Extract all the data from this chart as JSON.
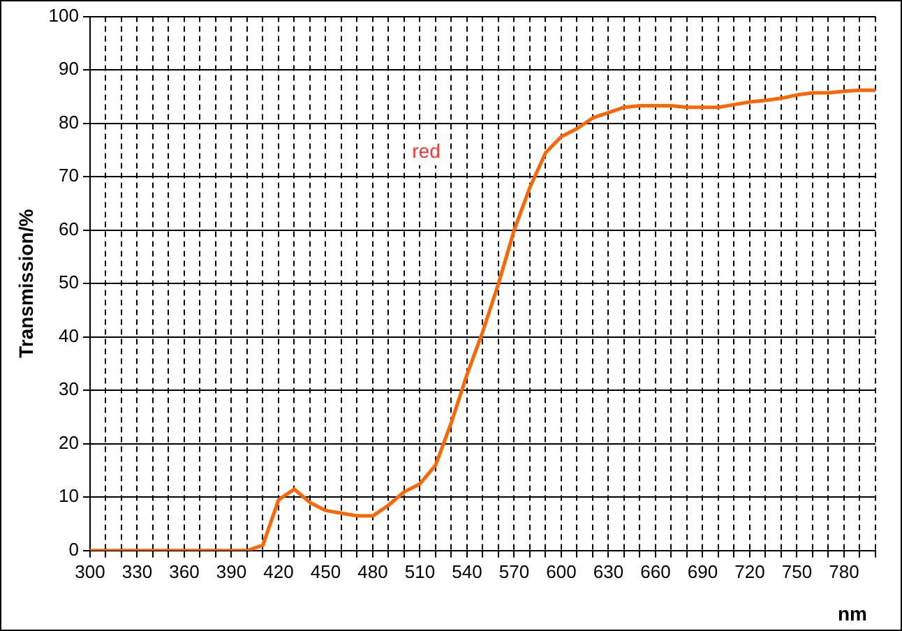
{
  "chart_data": {
    "type": "line",
    "xlabel": "nm",
    "ylabel": "Transmission/%",
    "xlim": [
      300,
      800
    ],
    "xticks": [
      300,
      {
        "value": 310,
        "label": null
      },
      {
        "value": 320,
        "label": null
      },
      330,
      {
        "value": 340,
        "label": null
      },
      {
        "value": 350,
        "label": null
      },
      360,
      {
        "value": 370,
        "label": null
      },
      {
        "value": 380,
        "label": null
      },
      390,
      {
        "value": 400,
        "label": null
      },
      {
        "value": 410,
        "label": null
      },
      420,
      {
        "value": 430,
        "label": null
      },
      {
        "value": 440,
        "label": null
      },
      450,
      {
        "value": 460,
        "label": null
      },
      {
        "value": 470,
        "label": null
      },
      480,
      {
        "value": 490,
        "label": null
      },
      {
        "value": 500,
        "label": null
      },
      510,
      {
        "value": 520,
        "label": null
      },
      {
        "value": 530,
        "label": null
      },
      540,
      {
        "value": 550,
        "label": null
      },
      {
        "value": 560,
        "label": null
      },
      570,
      {
        "value": 580,
        "label": null
      },
      {
        "value": 590,
        "label": null
      },
      600,
      {
        "value": 610,
        "label": null
      },
      {
        "value": 620,
        "label": null
      },
      630,
      {
        "value": 640,
        "label": null
      },
      {
        "value": 650,
        "label": null
      },
      660,
      {
        "value": 670,
        "label": null
      },
      {
        "value": 680,
        "label": null
      },
      690,
      {
        "value": 700,
        "label": null
      },
      {
        "value": 710,
        "label": null
      },
      720,
      {
        "value": 730,
        "label": null
      },
      {
        "value": 740,
        "label": null
      },
      750,
      {
        "value": 760,
        "label": null
      },
      {
        "value": 770,
        "label": null
      },
      780,
      {
        "value": 790,
        "label": null
      },
      {
        "value": 800,
        "label": null
      }
    ],
    "ylim": [
      0,
      100
    ],
    "yticks": [
      0,
      10,
      20,
      30,
      40,
      50,
      60,
      70,
      80,
      90,
      100
    ],
    "grid": true,
    "legend": false,
    "marker": "none",
    "line_style": "solid",
    "x": [
      300,
      310,
      320,
      330,
      340,
      350,
      360,
      370,
      380,
      390,
      400,
      410,
      420,
      430,
      440,
      450,
      460,
      470,
      480,
      490,
      500,
      510,
      520,
      530,
      540,
      550,
      560,
      570,
      580,
      590,
      600,
      610,
      620,
      630,
      640,
      650,
      660,
      670,
      680,
      690,
      700,
      710,
      720,
      730,
      740,
      750,
      760,
      770,
      780,
      790,
      800
    ],
    "series": [
      {
        "name": "red",
        "color": "#ff6600",
        "values": [
          0,
          0,
          0,
          0,
          0,
          0,
          0,
          0,
          0,
          0,
          0,
          1,
          9.5,
          11.5,
          9,
          7.5,
          7,
          6.5,
          6.5,
          8.5,
          11,
          12.5,
          16,
          24,
          33,
          41,
          50,
          60,
          68,
          74.5,
          77.5,
          79,
          81,
          82,
          83,
          83.3,
          83.3,
          83.3,
          83,
          83,
          83,
          83.5,
          84,
          84.3,
          84.7,
          85.3,
          85.7,
          85.7,
          86,
          86.2,
          86.2
        ]
      }
    ]
  }
}
